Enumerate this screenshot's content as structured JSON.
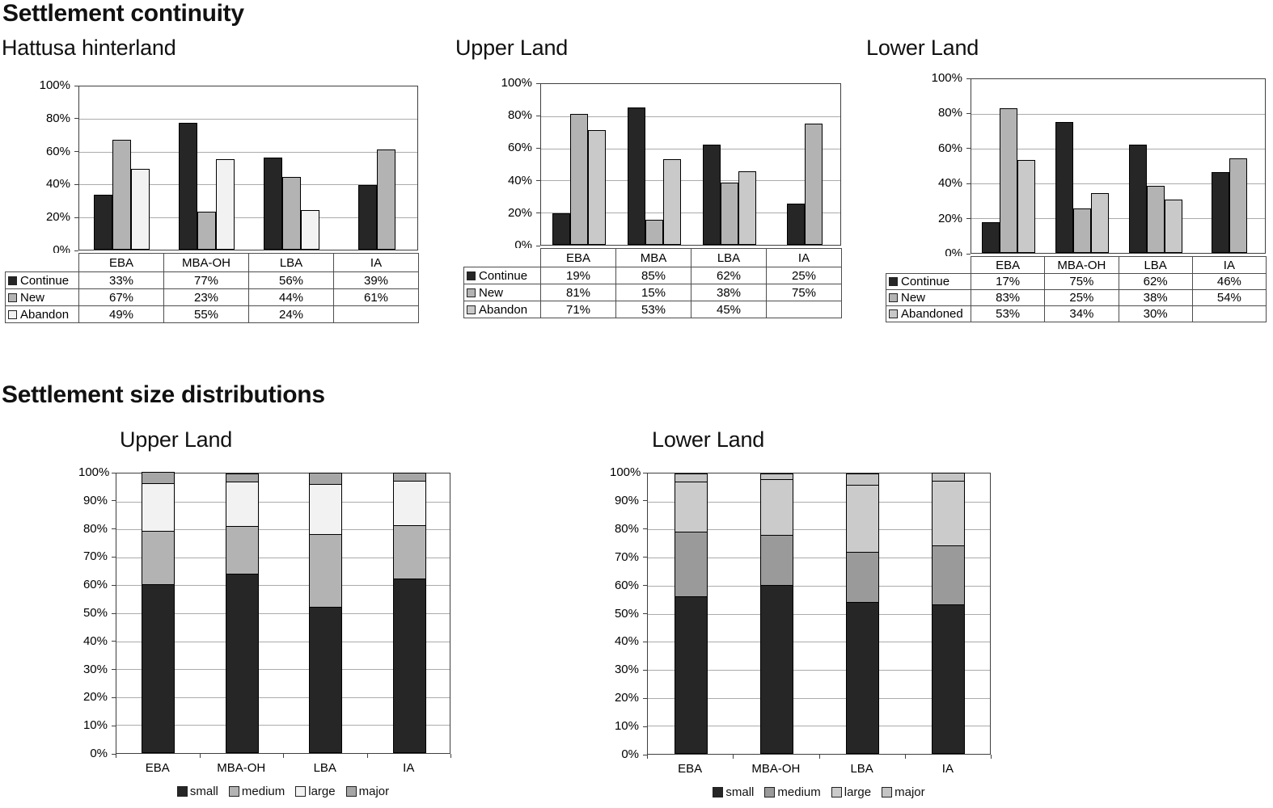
{
  "sections": {
    "continuity_title": "Settlement continuity",
    "size_title": "Settlement size distributions"
  },
  "chart_data": [
    {
      "id": "hattusa-hinterland-continuity",
      "type": "bar",
      "title": "Hattusa hinterland",
      "categories": [
        "EBA",
        "MBA-OH",
        "LBA",
        "IA"
      ],
      "series": [
        {
          "name": "Continue",
          "color": "#262626",
          "values": [
            33,
            77,
            56,
            39
          ]
        },
        {
          "name": "New",
          "color": "#b3b3b3",
          "values": [
            67,
            23,
            44,
            61
          ]
        },
        {
          "name": "Abandon",
          "color": "#f2f2f2",
          "values": [
            49,
            55,
            24,
            null
          ]
        }
      ],
      "value_format": "percent",
      "ylim": [
        0,
        100
      ],
      "ytick_step": 20,
      "grid": true,
      "legend_position": "table-left"
    },
    {
      "id": "upper-land-continuity",
      "type": "bar",
      "title": "Upper Land",
      "categories": [
        "EBA",
        "MBA",
        "LBA",
        "IA"
      ],
      "series": [
        {
          "name": "Continue",
          "color": "#262626",
          "values": [
            19,
            85,
            62,
            25
          ]
        },
        {
          "name": "New",
          "color": "#b3b3b3",
          "values": [
            81,
            15,
            38,
            75
          ]
        },
        {
          "name": "Abandon",
          "color": "#c9c9c9",
          "values": [
            71,
            53,
            45,
            null
          ]
        }
      ],
      "value_format": "percent",
      "ylim": [
        0,
        100
      ],
      "ytick_step": 20,
      "grid": true,
      "legend_position": "table-left"
    },
    {
      "id": "lower-land-continuity",
      "type": "bar",
      "title": "Lower Land",
      "categories": [
        "EBA",
        "MBA-OH",
        "LBA",
        "IA"
      ],
      "series": [
        {
          "name": "Continue",
          "color": "#262626",
          "values": [
            17,
            75,
            62,
            46
          ]
        },
        {
          "name": "New",
          "color": "#b3b3b3",
          "values": [
            83,
            25,
            38,
            54
          ]
        },
        {
          "name": "Abandoned",
          "color": "#c9c9c9",
          "values": [
            53,
            34,
            30,
            null
          ]
        }
      ],
      "value_format": "percent",
      "ylim": [
        0,
        100
      ],
      "ytick_step": 20,
      "grid": true,
      "legend_position": "table-left"
    },
    {
      "id": "upper-land-size-distribution",
      "type": "stacked-bar",
      "title": "Upper Land",
      "categories": [
        "EBA",
        "MBA-OH",
        "LBA",
        "IA"
      ],
      "series": [
        {
          "name": "small",
          "color": "#262626",
          "values": [
            60,
            64,
            52,
            62
          ]
        },
        {
          "name": "medium",
          "color": "#b3b3b3",
          "values": [
            19,
            17,
            26,
            19
          ]
        },
        {
          "name": "large",
          "color": "#f2f2f2",
          "values": [
            17,
            16,
            18,
            16
          ]
        },
        {
          "name": "major",
          "color": "#a6a6a6",
          "values": [
            4,
            3,
            4,
            3
          ]
        }
      ],
      "value_format": "percent",
      "ylim": [
        0,
        100
      ],
      "ytick_step": 10,
      "grid": true,
      "legend_position": "bottom"
    },
    {
      "id": "lower-land-size-distribution",
      "type": "stacked-bar",
      "title": "Lower Land",
      "categories": [
        "EBA",
        "MBA-OH",
        "LBA",
        "IA"
      ],
      "series": [
        {
          "name": "small",
          "color": "#262626",
          "values": [
            56,
            60,
            54,
            53
          ]
        },
        {
          "name": "medium",
          "color": "#9a9a9a",
          "values": [
            23,
            18,
            18,
            21
          ]
        },
        {
          "name": "large",
          "color": "#cbcbcb",
          "values": [
            18,
            20,
            24,
            23
          ]
        },
        {
          "name": "major",
          "color": "#c4c4c4",
          "values": [
            3,
            2,
            4,
            3
          ]
        }
      ],
      "value_format": "percent",
      "ylim": [
        0,
        100
      ],
      "ytick_step": 10,
      "grid": true,
      "legend_position": "bottom"
    }
  ]
}
